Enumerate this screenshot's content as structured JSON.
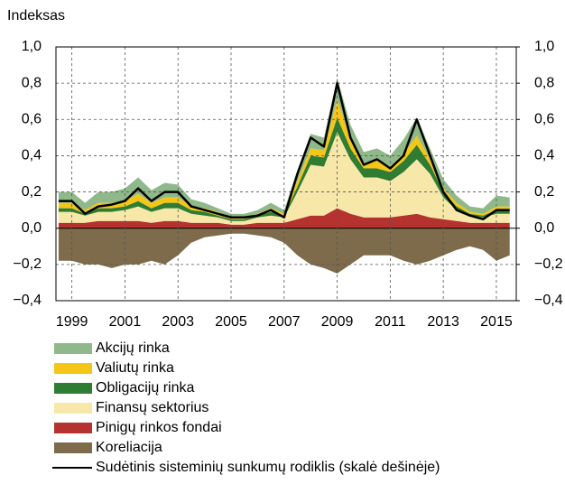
{
  "chart_data": {
    "type": "area",
    "stacked": true,
    "y_label": "Indeksas",
    "x": [
      1998.5,
      1999,
      1999.5,
      2000,
      2000.5,
      2001,
      2001.5,
      2002,
      2002.5,
      2003,
      2003.5,
      2004,
      2004.5,
      2005,
      2005.5,
      2006,
      2006.5,
      2007,
      2007.5,
      2008,
      2008.5,
      2009,
      2009.5,
      2010,
      2010.5,
      2011,
      2011.5,
      2012,
      2012.5,
      2013,
      2013.5,
      2014,
      2014.5,
      2015,
      2015.5
    ],
    "xlim": [
      1998.4,
      2015.75
    ],
    "xticks": [
      1999,
      2001,
      2003,
      2005,
      2007,
      2009,
      2011,
      2013,
      2015
    ],
    "ylim": [
      -0.4,
      1.0
    ],
    "yticks": [
      {
        "value": -0.4,
        "label": "−0,4"
      },
      {
        "value": -0.2,
        "label": "−0,2"
      },
      {
        "value": 0,
        "label": "0,0"
      },
      {
        "value": 0.2,
        "label": "0,2"
      },
      {
        "value": 0.4,
        "label": "0,4"
      },
      {
        "value": 0.6,
        "label": "0,6"
      },
      {
        "value": 0.8,
        "label": "0,8"
      },
      {
        "value": 1.0,
        "label": "1,0"
      }
    ],
    "y2lim": [
      -0.4,
      1.0
    ],
    "y2ticks": [
      {
        "value": -0.4,
        "label": "−0,4"
      },
      {
        "value": -0.2,
        "label": "−0,2"
      },
      {
        "value": 0,
        "label": "0,0"
      },
      {
        "value": 0.2,
        "label": "0,2"
      },
      {
        "value": 0.4,
        "label": "0,4"
      },
      {
        "value": 0.6,
        "label": "0,6"
      },
      {
        "value": 0.8,
        "label": "0,8"
      },
      {
        "value": 1.0,
        "label": "1,0"
      }
    ],
    "grid": true,
    "series": [
      {
        "name": "Akcijų rinka",
        "color": "#8fb98a",
        "values": [
          0.06,
          0.06,
          0.04,
          0.06,
          0.06,
          0.07,
          0.09,
          0.07,
          0.08,
          0.07,
          0.04,
          0.03,
          0.02,
          0.02,
          0.02,
          0.02,
          0.03,
          0.02,
          0.06,
          0.08,
          0.07,
          0.12,
          0.08,
          0.06,
          0.07,
          0.06,
          0.08,
          0.1,
          0.06,
          0.05,
          0.04,
          0.03,
          0.03,
          0.06,
          0.05
        ]
      },
      {
        "name": "Valiutų rinka",
        "color": "#f5c518",
        "values": [
          0.03,
          0.03,
          0.02,
          0.03,
          0.03,
          0.03,
          0.04,
          0.03,
          0.03,
          0.03,
          0.02,
          0.02,
          0.02,
          0.01,
          0.01,
          0.01,
          0.02,
          0.01,
          0.03,
          0.04,
          0.04,
          0.1,
          0.05,
          0.03,
          0.04,
          0.03,
          0.04,
          0.05,
          0.03,
          0.02,
          0.02,
          0.01,
          0.01,
          0.02,
          0.02
        ]
      },
      {
        "name": "Obligacijų rinka",
        "color": "#2e7d32",
        "values": [
          0.02,
          0.02,
          0.01,
          0.02,
          0.02,
          0.02,
          0.03,
          0.02,
          0.03,
          0.03,
          0.02,
          0.02,
          0.01,
          0.01,
          0.01,
          0.01,
          0.02,
          0.01,
          0.03,
          0.05,
          0.05,
          0.08,
          0.06,
          0.05,
          0.05,
          0.05,
          0.06,
          0.08,
          0.05,
          0.03,
          0.02,
          0.01,
          0.01,
          0.02,
          0.02
        ]
      },
      {
        "name": "Finansų sektorius",
        "color": "#f7e7a8",
        "values": [
          0.06,
          0.06,
          0.04,
          0.05,
          0.05,
          0.06,
          0.08,
          0.06,
          0.07,
          0.07,
          0.05,
          0.04,
          0.03,
          0.02,
          0.02,
          0.03,
          0.04,
          0.03,
          0.15,
          0.28,
          0.27,
          0.42,
          0.3,
          0.22,
          0.22,
          0.2,
          0.24,
          0.3,
          0.24,
          0.12,
          0.06,
          0.04,
          0.03,
          0.05,
          0.05
        ]
      },
      {
        "name": "Pinigų rinkos fondai",
        "color": "#b5322f",
        "values": [
          0.03,
          0.03,
          0.03,
          0.04,
          0.04,
          0.04,
          0.04,
          0.03,
          0.04,
          0.04,
          0.03,
          0.03,
          0.03,
          0.02,
          0.02,
          0.03,
          0.03,
          0.03,
          0.05,
          0.07,
          0.07,
          0.11,
          0.08,
          0.06,
          0.06,
          0.06,
          0.07,
          0.08,
          0.06,
          0.05,
          0.04,
          0.03,
          0.03,
          0.03,
          0.03
        ]
      },
      {
        "name": "Koreliacija",
        "color": "#7d6b4b",
        "values": [
          -0.18,
          -0.18,
          -0.2,
          -0.2,
          -0.22,
          -0.2,
          -0.2,
          -0.18,
          -0.2,
          -0.15,
          -0.08,
          -0.05,
          -0.04,
          -0.03,
          -0.03,
          -0.04,
          -0.05,
          -0.08,
          -0.15,
          -0.2,
          -0.22,
          -0.25,
          -0.2,
          -0.15,
          -0.15,
          -0.15,
          -0.18,
          -0.2,
          -0.18,
          -0.15,
          -0.12,
          -0.1,
          -0.12,
          -0.18,
          -0.15
        ]
      },
      {
        "name": "Sudėtinis sisteminių sunkumų rodiklis (skalė dešinėje)",
        "color": "#000000",
        "type": "line",
        "axis": "y2",
        "values": [
          0.15,
          0.15,
          0.08,
          0.12,
          0.13,
          0.15,
          0.22,
          0.15,
          0.2,
          0.2,
          0.12,
          0.1,
          0.08,
          0.06,
          0.06,
          0.07,
          0.1,
          0.06,
          0.3,
          0.5,
          0.45,
          0.8,
          0.5,
          0.35,
          0.38,
          0.33,
          0.4,
          0.6,
          0.4,
          0.2,
          0.1,
          0.07,
          0.05,
          0.1,
          0.1
        ]
      }
    ]
  }
}
